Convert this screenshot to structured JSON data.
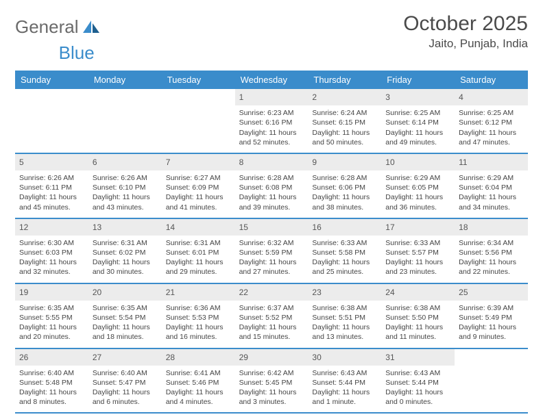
{
  "header": {
    "logo_general": "General",
    "logo_blue": "Blue",
    "month_title": "October 2025",
    "location": "Jaito, Punjab, India"
  },
  "style": {
    "accent_color": "#3a8ccb",
    "daynum_bg": "#ececec",
    "text_color": "#444444",
    "header_text_color": "#ffffff",
    "background": "#ffffff",
    "logo_gray": "#6a6a6a"
  },
  "weekdays": [
    "Sunday",
    "Monday",
    "Tuesday",
    "Wednesday",
    "Thursday",
    "Friday",
    "Saturday"
  ],
  "weeks": [
    [
      {
        "empty": true
      },
      {
        "empty": true
      },
      {
        "empty": true
      },
      {
        "num": "1",
        "sunrise": "Sunrise: 6:23 AM",
        "sunset": "Sunset: 6:16 PM",
        "daylight1": "Daylight: 11 hours",
        "daylight2": "and 52 minutes."
      },
      {
        "num": "2",
        "sunrise": "Sunrise: 6:24 AM",
        "sunset": "Sunset: 6:15 PM",
        "daylight1": "Daylight: 11 hours",
        "daylight2": "and 50 minutes."
      },
      {
        "num": "3",
        "sunrise": "Sunrise: 6:25 AM",
        "sunset": "Sunset: 6:14 PM",
        "daylight1": "Daylight: 11 hours",
        "daylight2": "and 49 minutes."
      },
      {
        "num": "4",
        "sunrise": "Sunrise: 6:25 AM",
        "sunset": "Sunset: 6:12 PM",
        "daylight1": "Daylight: 11 hours",
        "daylight2": "and 47 minutes."
      }
    ],
    [
      {
        "num": "5",
        "sunrise": "Sunrise: 6:26 AM",
        "sunset": "Sunset: 6:11 PM",
        "daylight1": "Daylight: 11 hours",
        "daylight2": "and 45 minutes."
      },
      {
        "num": "6",
        "sunrise": "Sunrise: 6:26 AM",
        "sunset": "Sunset: 6:10 PM",
        "daylight1": "Daylight: 11 hours",
        "daylight2": "and 43 minutes."
      },
      {
        "num": "7",
        "sunrise": "Sunrise: 6:27 AM",
        "sunset": "Sunset: 6:09 PM",
        "daylight1": "Daylight: 11 hours",
        "daylight2": "and 41 minutes."
      },
      {
        "num": "8",
        "sunrise": "Sunrise: 6:28 AM",
        "sunset": "Sunset: 6:08 PM",
        "daylight1": "Daylight: 11 hours",
        "daylight2": "and 39 minutes."
      },
      {
        "num": "9",
        "sunrise": "Sunrise: 6:28 AM",
        "sunset": "Sunset: 6:06 PM",
        "daylight1": "Daylight: 11 hours",
        "daylight2": "and 38 minutes."
      },
      {
        "num": "10",
        "sunrise": "Sunrise: 6:29 AM",
        "sunset": "Sunset: 6:05 PM",
        "daylight1": "Daylight: 11 hours",
        "daylight2": "and 36 minutes."
      },
      {
        "num": "11",
        "sunrise": "Sunrise: 6:29 AM",
        "sunset": "Sunset: 6:04 PM",
        "daylight1": "Daylight: 11 hours",
        "daylight2": "and 34 minutes."
      }
    ],
    [
      {
        "num": "12",
        "sunrise": "Sunrise: 6:30 AM",
        "sunset": "Sunset: 6:03 PM",
        "daylight1": "Daylight: 11 hours",
        "daylight2": "and 32 minutes."
      },
      {
        "num": "13",
        "sunrise": "Sunrise: 6:31 AM",
        "sunset": "Sunset: 6:02 PM",
        "daylight1": "Daylight: 11 hours",
        "daylight2": "and 30 minutes."
      },
      {
        "num": "14",
        "sunrise": "Sunrise: 6:31 AM",
        "sunset": "Sunset: 6:01 PM",
        "daylight1": "Daylight: 11 hours",
        "daylight2": "and 29 minutes."
      },
      {
        "num": "15",
        "sunrise": "Sunrise: 6:32 AM",
        "sunset": "Sunset: 5:59 PM",
        "daylight1": "Daylight: 11 hours",
        "daylight2": "and 27 minutes."
      },
      {
        "num": "16",
        "sunrise": "Sunrise: 6:33 AM",
        "sunset": "Sunset: 5:58 PM",
        "daylight1": "Daylight: 11 hours",
        "daylight2": "and 25 minutes."
      },
      {
        "num": "17",
        "sunrise": "Sunrise: 6:33 AM",
        "sunset": "Sunset: 5:57 PM",
        "daylight1": "Daylight: 11 hours",
        "daylight2": "and 23 minutes."
      },
      {
        "num": "18",
        "sunrise": "Sunrise: 6:34 AM",
        "sunset": "Sunset: 5:56 PM",
        "daylight1": "Daylight: 11 hours",
        "daylight2": "and 22 minutes."
      }
    ],
    [
      {
        "num": "19",
        "sunrise": "Sunrise: 6:35 AM",
        "sunset": "Sunset: 5:55 PM",
        "daylight1": "Daylight: 11 hours",
        "daylight2": "and 20 minutes."
      },
      {
        "num": "20",
        "sunrise": "Sunrise: 6:35 AM",
        "sunset": "Sunset: 5:54 PM",
        "daylight1": "Daylight: 11 hours",
        "daylight2": "and 18 minutes."
      },
      {
        "num": "21",
        "sunrise": "Sunrise: 6:36 AM",
        "sunset": "Sunset: 5:53 PM",
        "daylight1": "Daylight: 11 hours",
        "daylight2": "and 16 minutes."
      },
      {
        "num": "22",
        "sunrise": "Sunrise: 6:37 AM",
        "sunset": "Sunset: 5:52 PM",
        "daylight1": "Daylight: 11 hours",
        "daylight2": "and 15 minutes."
      },
      {
        "num": "23",
        "sunrise": "Sunrise: 6:38 AM",
        "sunset": "Sunset: 5:51 PM",
        "daylight1": "Daylight: 11 hours",
        "daylight2": "and 13 minutes."
      },
      {
        "num": "24",
        "sunrise": "Sunrise: 6:38 AM",
        "sunset": "Sunset: 5:50 PM",
        "daylight1": "Daylight: 11 hours",
        "daylight2": "and 11 minutes."
      },
      {
        "num": "25",
        "sunrise": "Sunrise: 6:39 AM",
        "sunset": "Sunset: 5:49 PM",
        "daylight1": "Daylight: 11 hours",
        "daylight2": "and 9 minutes."
      }
    ],
    [
      {
        "num": "26",
        "sunrise": "Sunrise: 6:40 AM",
        "sunset": "Sunset: 5:48 PM",
        "daylight1": "Daylight: 11 hours",
        "daylight2": "and 8 minutes."
      },
      {
        "num": "27",
        "sunrise": "Sunrise: 6:40 AM",
        "sunset": "Sunset: 5:47 PM",
        "daylight1": "Daylight: 11 hours",
        "daylight2": "and 6 minutes."
      },
      {
        "num": "28",
        "sunrise": "Sunrise: 6:41 AM",
        "sunset": "Sunset: 5:46 PM",
        "daylight1": "Daylight: 11 hours",
        "daylight2": "and 4 minutes."
      },
      {
        "num": "29",
        "sunrise": "Sunrise: 6:42 AM",
        "sunset": "Sunset: 5:45 PM",
        "daylight1": "Daylight: 11 hours",
        "daylight2": "and 3 minutes."
      },
      {
        "num": "30",
        "sunrise": "Sunrise: 6:43 AM",
        "sunset": "Sunset: 5:44 PM",
        "daylight1": "Daylight: 11 hours",
        "daylight2": "and 1 minute."
      },
      {
        "num": "31",
        "sunrise": "Sunrise: 6:43 AM",
        "sunset": "Sunset: 5:44 PM",
        "daylight1": "Daylight: 11 hours",
        "daylight2": "and 0 minutes."
      },
      {
        "empty": true
      }
    ]
  ]
}
